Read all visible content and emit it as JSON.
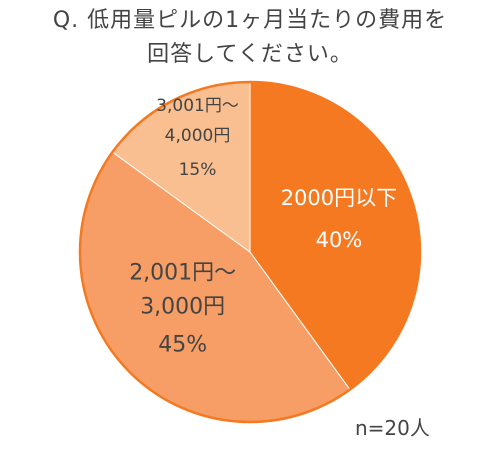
{
  "title": {
    "line1": "Q. 低用量ピルの1ヶ月当たりの費用を",
    "line2": "回答してください。"
  },
  "note": "n=20人",
  "chart_data": {
    "type": "pie",
    "start_angle_deg": 0,
    "direction": "clockwise",
    "border_color": "#f47920",
    "slices": [
      {
        "label_lines": [
          "2000円以下"
        ],
        "value": 40,
        "value_label": "40%",
        "color": "#f47920",
        "text_color": "#ffffff"
      },
      {
        "label_lines": [
          "2,001円〜",
          "3,000円"
        ],
        "value": 45,
        "value_label": "45%",
        "color": "#f79e66",
        "text_color": "#444444"
      },
      {
        "label_lines": [
          "3,001円〜",
          "4,000円"
        ],
        "value": 15,
        "value_label": "15%",
        "color": "#f9bf91",
        "text_color": "#444444"
      }
    ]
  }
}
